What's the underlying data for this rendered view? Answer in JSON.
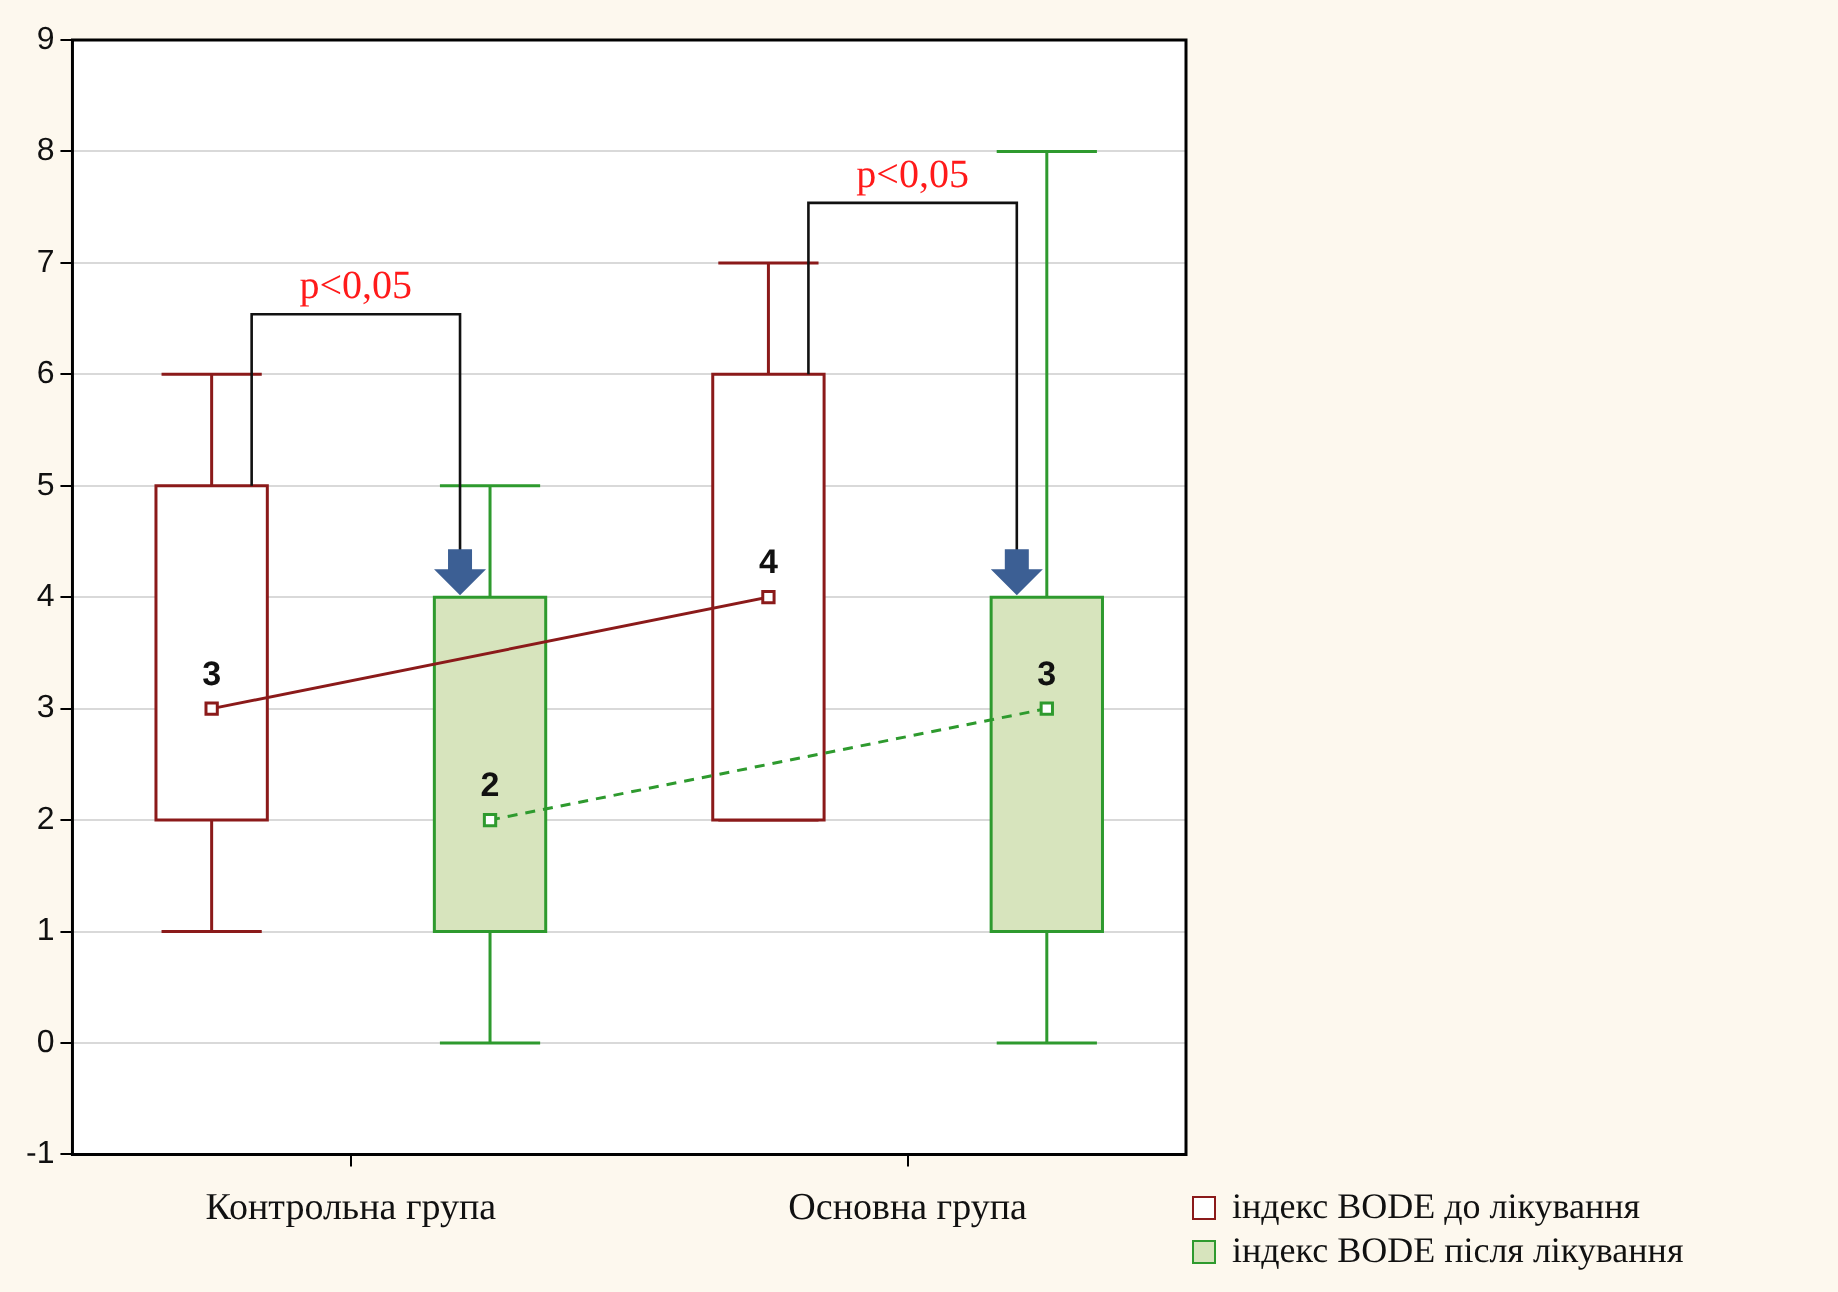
{
  "chart_data": {
    "type": "box",
    "categories": [
      "Контрольна група",
      "Основна група"
    ],
    "series": [
      {
        "name": "індекс BODE до лікування",
        "color": "#8b1a1a",
        "line_style": "solid",
        "colors": [
          "#ffffff",
          "#ffffff"
        ],
        "value_labels": [
          "3",
          "4"
        ],
        "boxes": [
          {
            "low": 1,
            "q1": 2,
            "median": 3,
            "q3": 5,
            "high": 6
          },
          {
            "low": 2,
            "q1": 2,
            "median": 4,
            "q3": 6,
            "high": 7
          }
        ]
      },
      {
        "name": "індекс BODE після лікування",
        "color": "#2e9a2e",
        "line_style": "dashed",
        "colors": [
          "#d7e4bd",
          "#d7e4bd"
        ],
        "value_labels": [
          "2",
          "3"
        ],
        "boxes": [
          {
            "low": 0,
            "q1": 1,
            "median": 2,
            "q3": 4,
            "high": 5
          },
          {
            "low": 0,
            "q1": 1,
            "median": 3,
            "q3": 4,
            "high": 8
          }
        ]
      }
    ],
    "ylim": [
      -1,
      9
    ],
    "yticks": [
      -1,
      0,
      1,
      2,
      3,
      4,
      5,
      6,
      7,
      8,
      9
    ],
    "grid": "y",
    "legend": "bottom right",
    "marker": "square",
    "annotations": [
      "p<0,05",
      "p<0,05"
    ]
  }
}
